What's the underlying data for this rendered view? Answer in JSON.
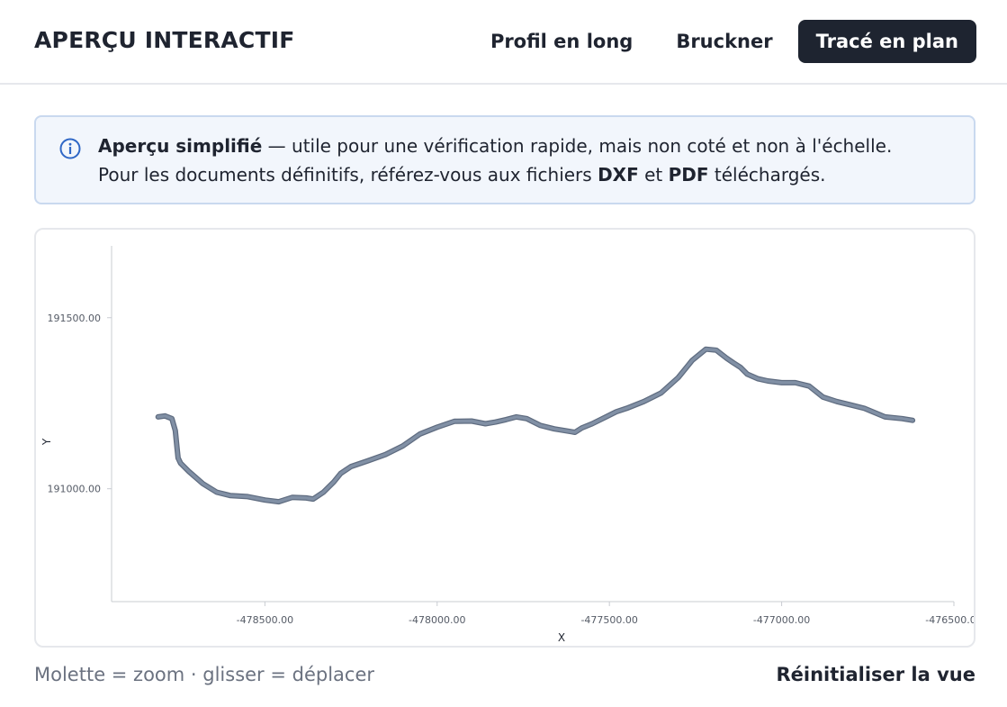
{
  "header": {
    "title": "APERÇU INTERACTIF",
    "tabs": [
      {
        "label": "Profil en long",
        "active": false
      },
      {
        "label": "Bruckner",
        "active": false
      },
      {
        "label": "Tracé en plan",
        "active": true
      }
    ]
  },
  "info": {
    "icon": "info-icon",
    "strong": "Aperçu simplifié",
    "line1_rest": " — utile pour une vérification rapide, mais non coté et non à l'échelle.",
    "line2_before": "Pour les documents définitifs, référez-vous aux fichiers ",
    "dxf": "DXF",
    "and": " et ",
    "pdf": "PDF",
    "line2_after": " téléchargés."
  },
  "chart_data": {
    "type": "line",
    "xlabel": "X",
    "ylabel": "Y",
    "xlim": [
      -478945,
      -476500
    ],
    "ylim": [
      190670,
      191710
    ],
    "x_ticks": [
      -478500,
      -478000,
      -477500,
      -477000,
      -476500
    ],
    "x_tick_labels": [
      "-478500.00",
      "-478000.00",
      "-477500.00",
      "-477000.00",
      "-476500.00"
    ],
    "y_ticks": [
      191000,
      191500
    ],
    "y_tick_labels": [
      "191000.00",
      "191500.00"
    ],
    "grid": false,
    "line_color": "#8190a5",
    "series": [
      {
        "x": [
          -478810,
          -478790,
          -478770,
          -478760,
          -478755,
          -478752,
          -478745,
          -478720,
          -478680,
          -478640,
          -478600,
          -478550,
          -478500,
          -478460,
          -478420,
          -478380,
          -478360,
          -478330,
          -478300,
          -478280,
          -478250,
          -478200,
          -478150,
          -478100,
          -478050,
          -478000,
          -477950,
          -477900,
          -477860,
          -477830,
          -477800,
          -477770,
          -477740,
          -477700,
          -477660,
          -477630,
          -477600,
          -477580,
          -477550,
          -477510,
          -477480,
          -477450,
          -477400,
          -477350,
          -477300,
          -477260,
          -477220,
          -477190,
          -477160,
          -477140,
          -477120,
          -477100,
          -477070,
          -477040,
          -477000,
          -476960,
          -476920,
          -476880,
          -476840,
          -476800,
          -476760,
          -476700,
          -476650,
          -476620
        ],
        "y": [
          191210,
          191213,
          191205,
          191170,
          191120,
          191090,
          191075,
          191050,
          191015,
          190990,
          190980,
          190977,
          190967,
          190962,
          190975,
          190973,
          190970,
          190990,
          191020,
          191045,
          191065,
          191082,
          191100,
          191125,
          191160,
          191180,
          191197,
          191198,
          191190,
          191195,
          191202,
          191210,
          191205,
          191185,
          191175,
          191170,
          191165,
          191178,
          191190,
          191210,
          191225,
          191235,
          191255,
          191280,
          191325,
          191375,
          191408,
          191405,
          191382,
          191368,
          191355,
          191335,
          191322,
          191315,
          191310,
          191310,
          191300,
          191268,
          191255,
          191245,
          191235,
          191210,
          191205,
          191200
        ]
      }
    ]
  },
  "footer": {
    "hint": "Molette = zoom · glisser = déplacer",
    "reset_label": "Réinitialiser la vue"
  }
}
